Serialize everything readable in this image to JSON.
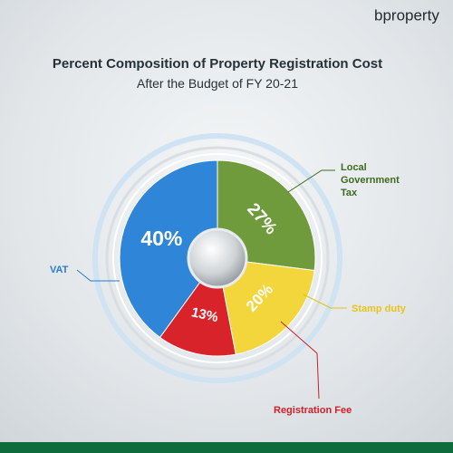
{
  "brand": "bproperty",
  "chart_data": {
    "type": "pie",
    "title": "Percent Composition of Property Registration Cost",
    "subtitle": "After the Budget of FY 20-21",
    "categories": [
      "Local Government Tax",
      "Stamp duty",
      "Registration Fee",
      "VAT"
    ],
    "values": [
      27,
      20,
      13,
      40
    ],
    "value_labels": [
      "27%",
      "20%",
      "13%",
      "40%"
    ],
    "colors": [
      "#6f9b3c",
      "#f3d53c",
      "#d8232b",
      "#2f86d8"
    ]
  }
}
